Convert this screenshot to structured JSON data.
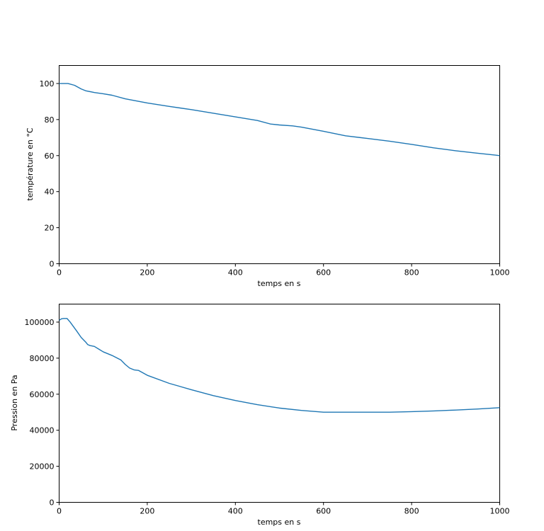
{
  "colors": {
    "series": "#1f77b4",
    "axes": "#000000",
    "background": "#ffffff"
  },
  "chart_data": [
    {
      "type": "line",
      "title": "",
      "xlabel": "temps en s",
      "ylabel": "température en °C",
      "xlim": [
        0,
        1000
      ],
      "ylim": [
        0,
        110
      ],
      "xticks": [
        0,
        200,
        400,
        600,
        800,
        1000
      ],
      "yticks": [
        0,
        20,
        40,
        60,
        80,
        100
      ],
      "grid": false,
      "series": [
        {
          "x": [
            0,
            20,
            35,
            50,
            60,
            80,
            100,
            120,
            150,
            200,
            250,
            300,
            350,
            400,
            450,
            480,
            500,
            530,
            550,
            600,
            650,
            700,
            750,
            800,
            850,
            900,
            950,
            990,
            1000
          ],
          "y": [
            100,
            100,
            99,
            97,
            96,
            95,
            94.3,
            93.5,
            91.5,
            89.2,
            87.3,
            85.5,
            83.5,
            81.5,
            79.5,
            77.5,
            77,
            76.5,
            75.8,
            73.5,
            71,
            69.5,
            68,
            66.2,
            64.3,
            62.7,
            61.3,
            60.3,
            60
          ]
        }
      ]
    },
    {
      "type": "line",
      "title": "",
      "xlabel": "temps en s",
      "ylabel": "Pression en Pa",
      "xlim": [
        0,
        1000
      ],
      "ylim": [
        0,
        110000
      ],
      "xticks": [
        0,
        200,
        400,
        600,
        800,
        1000
      ],
      "yticks": [
        0,
        20000,
        40000,
        60000,
        80000,
        100000
      ],
      "grid": false,
      "series": [
        {
          "x": [
            0,
            5,
            10,
            18,
            25,
            40,
            50,
            60,
            65,
            70,
            80,
            90,
            100,
            120,
            140,
            150,
            160,
            170,
            180,
            200,
            250,
            300,
            350,
            400,
            450,
            500,
            550,
            600,
            650,
            700,
            750,
            800,
            850,
            900,
            950,
            1000
          ],
          "y": [
            101000,
            101800,
            102000,
            102000,
            100000,
            95000,
            91500,
            89000,
            87500,
            87000,
            86500,
            85000,
            83500,
            81500,
            79000,
            76500,
            74500,
            73500,
            73200,
            70500,
            66000,
            62500,
            59200,
            56500,
            54200,
            52300,
            51000,
            50000,
            50000,
            50000,
            50000,
            50300,
            50700,
            51200,
            51800,
            52500
          ]
        }
      ]
    }
  ]
}
